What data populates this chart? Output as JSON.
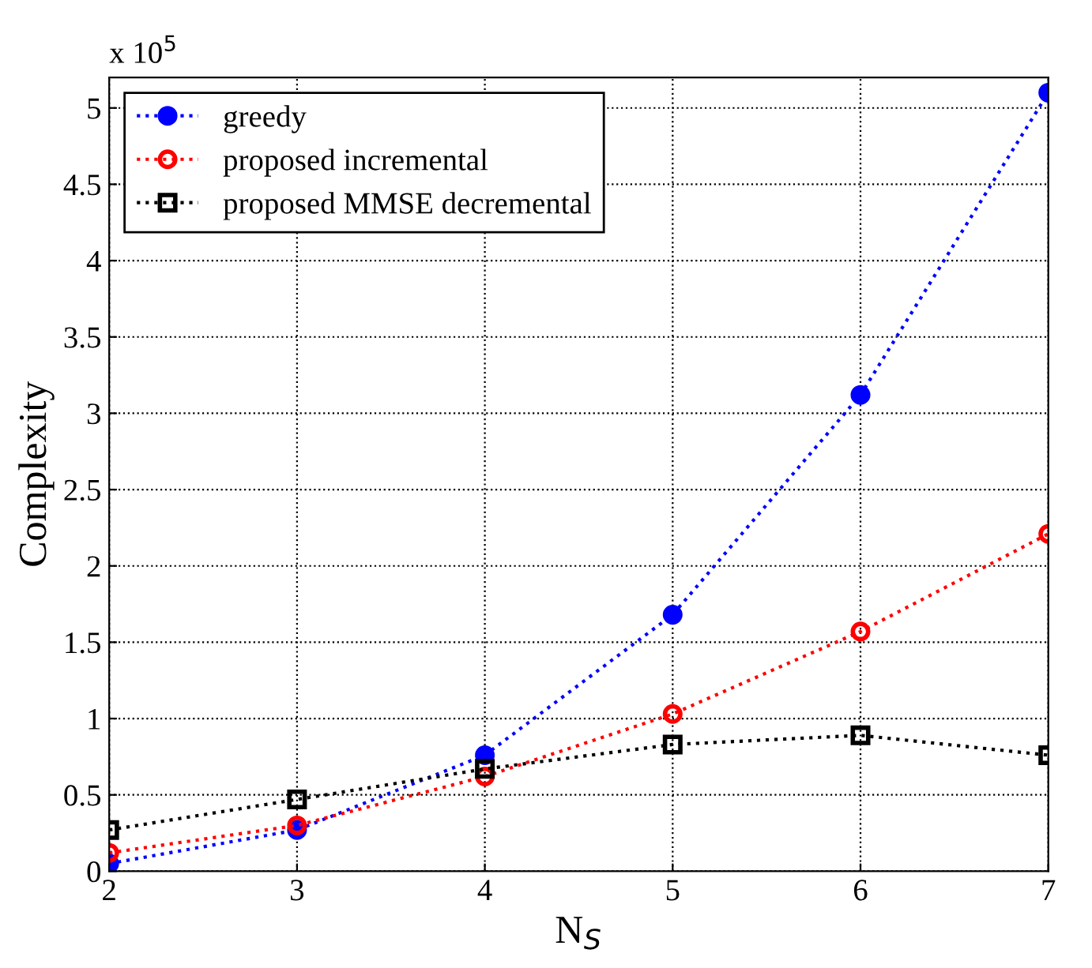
{
  "chart_data": {
    "type": "line",
    "xlabel": "N$_{S}$",
    "ylabel": "Complexity",
    "annotations": [
      "x 10$^{5}$"
    ],
    "x": [
      2,
      3,
      4,
      5,
      6,
      7
    ],
    "series": [
      {
        "name": "greedy",
        "color": "#0000ff",
        "marker": "circle",
        "values": [
          0.05,
          0.27,
          0.76,
          1.68,
          3.12,
          5.1
        ]
      },
      {
        "name": "proposed incremental",
        "color": "#ff0000",
        "marker": "circle",
        "values": [
          0.12,
          0.3,
          0.62,
          1.03,
          1.57,
          2.21
        ]
      },
      {
        "name": "proposed MMSE decremental",
        "color": "#000000",
        "marker": "square",
        "values": [
          0.27,
          0.47,
          0.67,
          0.83,
          0.89,
          0.76
        ]
      }
    ],
    "xlim": [
      2,
      7
    ],
    "xticks": [
      2,
      3,
      4,
      5,
      6,
      7
    ],
    "ylim": [
      0,
      5.2
    ],
    "yticks": [
      0,
      0.5,
      1,
      1.5,
      2,
      2.5,
      3,
      3.5,
      4,
      4.5,
      5
    ],
    "grid": true,
    "legend": "top left",
    "line_style": "dotted"
  }
}
